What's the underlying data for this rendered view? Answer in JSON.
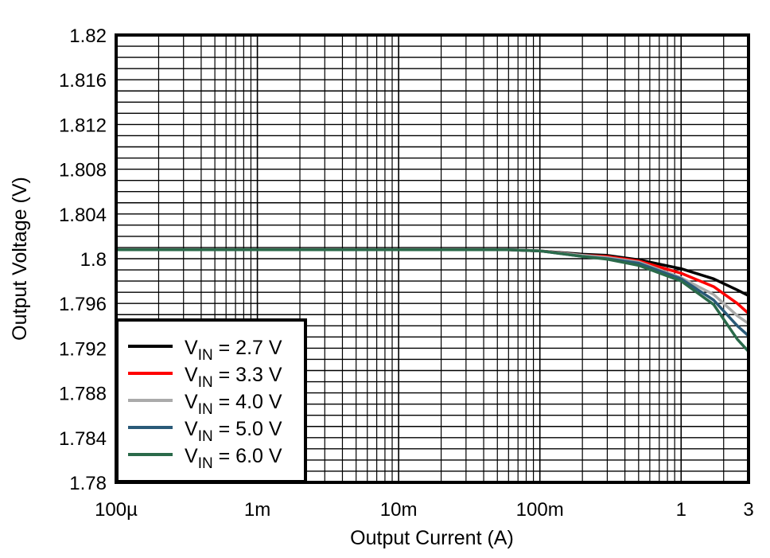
{
  "chart_data": {
    "type": "line",
    "title": "",
    "xlabel": "Output Current (A)",
    "ylabel": "Output Voltage (V)",
    "xscale": "log",
    "xlim": [
      0.0001,
      3
    ],
    "ylim": [
      1.78,
      1.82
    ],
    "grid": true,
    "legend_placement": "bottom-left",
    "x_ticks": [
      {
        "value": 0.0001,
        "label": "100µ"
      },
      {
        "value": 0.001,
        "label": "1m"
      },
      {
        "value": 0.01,
        "label": "10m"
      },
      {
        "value": 0.1,
        "label": "100m"
      },
      {
        "value": 1,
        "label": "1"
      },
      {
        "value": 3,
        "label": "3"
      }
    ],
    "y_ticks": [
      {
        "value": 1.82,
        "label": "1.82"
      },
      {
        "value": 1.816,
        "label": "1.816"
      },
      {
        "value": 1.812,
        "label": "1.812"
      },
      {
        "value": 1.808,
        "label": "1.808"
      },
      {
        "value": 1.804,
        "label": "1.804"
      },
      {
        "value": 1.8,
        "label": "1.8"
      },
      {
        "value": 1.796,
        "label": "1.796"
      },
      {
        "value": 1.792,
        "label": "1.792"
      },
      {
        "value": 1.788,
        "label": "1.788"
      },
      {
        "value": 1.784,
        "label": "1.784"
      },
      {
        "value": 1.78,
        "label": "1.78"
      }
    ],
    "x": [
      0.0001,
      0.001,
      0.01,
      0.06,
      0.1,
      0.2,
      0.3,
      0.5,
      1,
      1.7,
      2.5,
      3
    ],
    "series": [
      {
        "name": "VIN = 2.7 V",
        "color": "#000000",
        "values": [
          1.8008,
          1.8008,
          1.8008,
          1.8008,
          1.8007,
          1.8004,
          1.8003,
          1.7999,
          1.7991,
          1.7982,
          1.7972,
          1.7967
        ]
      },
      {
        "name": "VIN = 3.3 V",
        "color": "#ff0000",
        "values": [
          1.8008,
          1.8008,
          1.8008,
          1.8008,
          1.8007,
          1.8003,
          1.8002,
          1.7998,
          1.7987,
          1.7975,
          1.796,
          1.7951
        ]
      },
      {
        "name": "VIN = 4.0 V",
        "color": "#aaaaaa",
        "values": [
          1.8008,
          1.8008,
          1.8008,
          1.8008,
          1.8007,
          1.8003,
          1.8001,
          1.7997,
          1.7983,
          1.7968,
          1.7949,
          1.7942
        ]
      },
      {
        "name": "VIN = 5.0 V",
        "color": "#2a5a78",
        "values": [
          1.8008,
          1.8008,
          1.8008,
          1.8008,
          1.8007,
          1.8002,
          1.8,
          1.7996,
          1.7982,
          1.7963,
          1.794,
          1.7931
        ]
      },
      {
        "name": "VIN = 6.0 V",
        "color": "#2a6a4a",
        "values": [
          1.8008,
          1.8008,
          1.8008,
          1.8008,
          1.8007,
          1.8002,
          1.79995,
          1.7994,
          1.798,
          1.7959,
          1.7928,
          1.7917
        ]
      }
    ]
  }
}
